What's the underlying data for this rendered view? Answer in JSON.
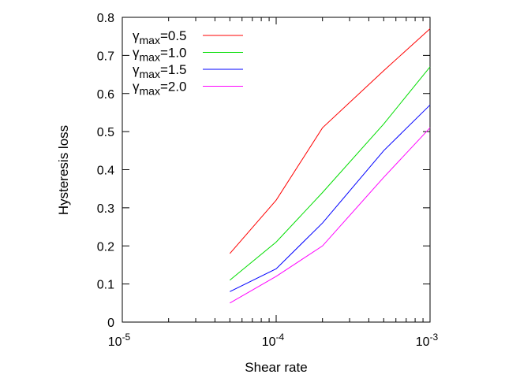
{
  "chart_data": {
    "type": "line",
    "title": "",
    "xlabel": "Shear rate",
    "ylabel": "Hysteresis loss",
    "x_scale": "log",
    "xlim": [
      1e-05,
      0.001
    ],
    "ylim": [
      0,
      0.8
    ],
    "grid": false,
    "legend_position": "top-left",
    "x_ticks": [
      {
        "value": 1e-05,
        "base": "10",
        "exp": "-5"
      },
      {
        "value": 0.0001,
        "base": "10",
        "exp": "-4"
      },
      {
        "value": 0.001,
        "base": "10",
        "exp": "-3"
      }
    ],
    "y_ticks": [
      {
        "value": 0,
        "label": "0"
      },
      {
        "value": 0.1,
        "label": "0.1"
      },
      {
        "value": 0.2,
        "label": "0.2"
      },
      {
        "value": 0.3,
        "label": "0.3"
      },
      {
        "value": 0.4,
        "label": "0.4"
      },
      {
        "value": 0.5,
        "label": "0.5"
      },
      {
        "value": 0.6,
        "label": "0.6"
      },
      {
        "value": 0.7,
        "label": "0.7"
      },
      {
        "value": 0.8,
        "label": "0.8"
      }
    ],
    "x": [
      5e-05,
      0.0001,
      0.0002,
      0.0005,
      0.001
    ],
    "series": [
      {
        "name": "γmax=0.5",
        "symbol": "γ",
        "sub": "max",
        "value_label": "=0.5",
        "color": "#ff0000",
        "values": [
          0.18,
          0.32,
          0.51,
          0.66,
          0.77
        ]
      },
      {
        "name": "γmax=1.0",
        "symbol": "γ",
        "sub": "max",
        "value_label": "=1.0",
        "color": "#00dd00",
        "values": [
          0.11,
          0.21,
          0.34,
          0.52,
          0.67
        ]
      },
      {
        "name": "γmax=1.5",
        "symbol": "γ",
        "sub": "max",
        "value_label": "=1.5",
        "color": "#0000ff",
        "values": [
          0.08,
          0.14,
          0.26,
          0.45,
          0.57
        ]
      },
      {
        "name": "γmax=2.0",
        "symbol": "γ",
        "sub": "max",
        "value_label": "=2.0",
        "color": "#ff00ff",
        "values": [
          0.05,
          0.12,
          0.2,
          0.38,
          0.51
        ]
      }
    ]
  }
}
